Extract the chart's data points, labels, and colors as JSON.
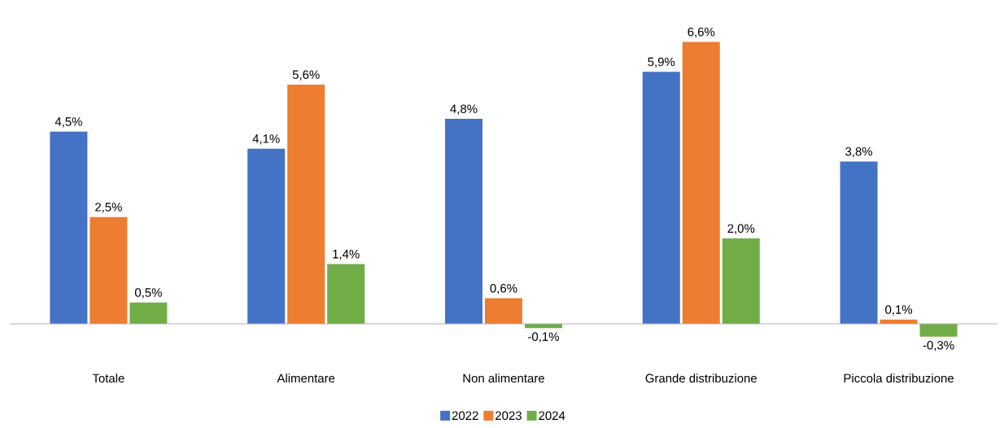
{
  "chart_data": {
    "type": "bar",
    "categories": [
      "Totale",
      "Alimentare",
      "Non alimentare",
      "Grande distribuzione",
      "Piccola distribuzione"
    ],
    "series": [
      {
        "name": "2022",
        "color": "#4472c4",
        "values": [
          4.5,
          4.1,
          4.8,
          5.9,
          3.8
        ],
        "value_labels": [
          "4,5%",
          "4,1%",
          "4,8%",
          "5,9%",
          "3,8%"
        ]
      },
      {
        "name": "2023",
        "color": "#ed7d31",
        "values": [
          2.5,
          5.6,
          0.6,
          6.6,
          0.1
        ],
        "value_labels": [
          "2,5%",
          "5,6%",
          "0,6%",
          "6,6%",
          "0,1%"
        ]
      },
      {
        "name": "2024",
        "color": "#70ad47",
        "values": [
          0.5,
          1.4,
          -0.1,
          2.0,
          -0.3
        ],
        "value_labels": [
          "0,5%",
          "1,4%",
          "-0,1%",
          "2,0%",
          "-0,3%"
        ]
      }
    ],
    "legend": "bottom"
  }
}
